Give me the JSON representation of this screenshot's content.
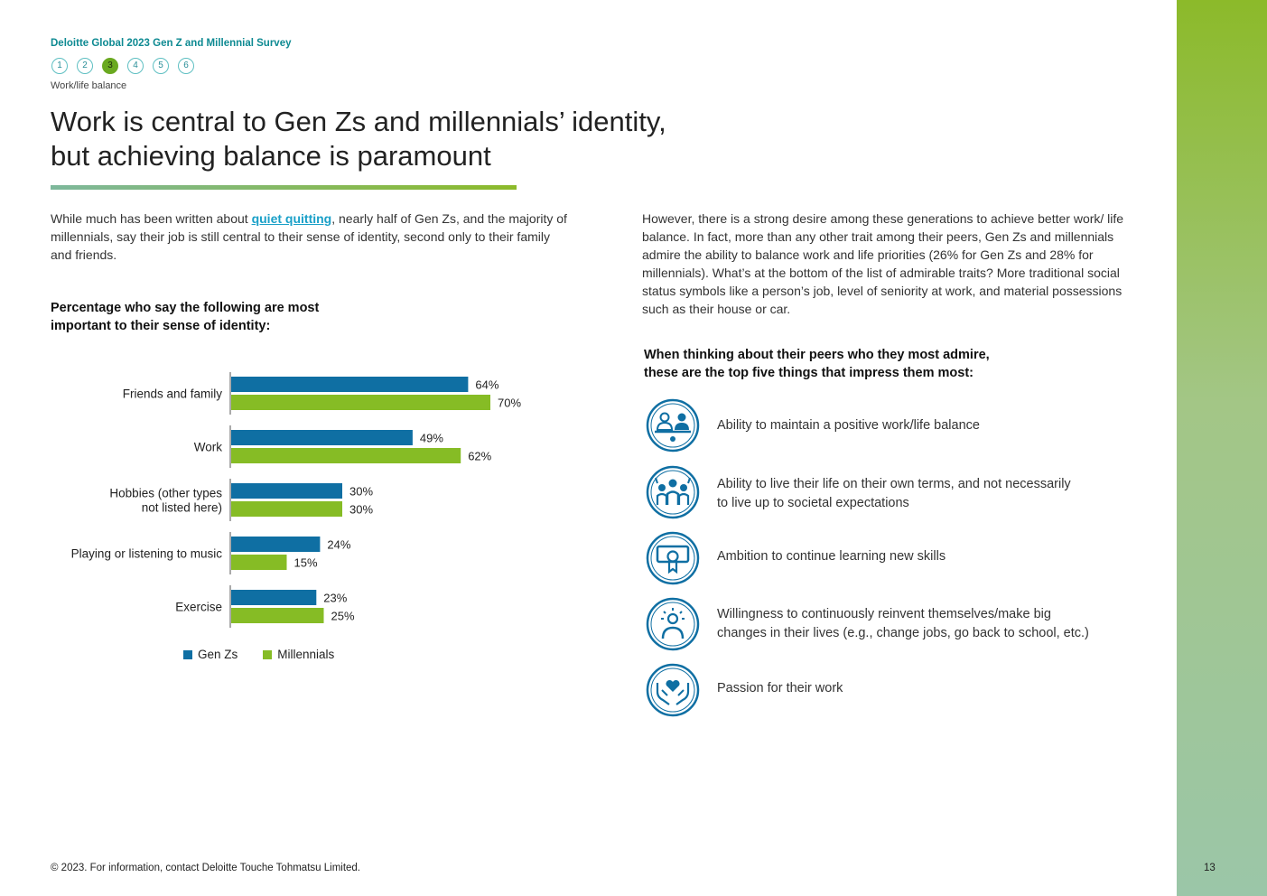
{
  "header": {
    "survey_title": "Deloitte Global 2023 Gen Z and Millennial Survey",
    "steps": [
      "1",
      "2",
      "3",
      "4",
      "5",
      "6"
    ],
    "active_step": 3,
    "section_label": "Work/life balance"
  },
  "headline": {
    "line1": "Work is central to Gen Zs and millennials’ identity,",
    "line2": "but achieving balance is paramount"
  },
  "intro": {
    "before_link": "While much has been written about ",
    "link_text": "quiet quitting",
    "after_link": ", nearly half of Gen Zs, and the majority of millennials, say their job is still central to their sense of identity, second only to their family and friends."
  },
  "right_paragraph": "However, there is a strong desire among these generations to achieve better work/ life balance. In fact, more than any other trait among their peers, Gen Zs and millennials admire the ability to balance work and life priorities (26% for Gen Zs and 28% for millennials). What’s at the bottom of the list of admirable traits? More traditional social status symbols like a person’s job, level of seniority at work, and material possessions such as their house or car.",
  "chart_data": {
    "type": "bar",
    "orientation": "horizontal",
    "title": "Percentage who say the following are most important to their sense of identity:",
    "categories": [
      [
        "Friends and family"
      ],
      [
        "Work"
      ],
      [
        "Hobbies (other types",
        "not listed here)"
      ],
      [
        "Playing or listening to music"
      ],
      [
        "Exercise"
      ]
    ],
    "series": [
      {
        "name": "Gen Zs",
        "color": "#0f6fa3",
        "values": [
          64,
          49,
          30,
          24,
          23
        ]
      },
      {
        "name": "Millennials",
        "color": "#86bc25",
        "values": [
          70,
          62,
          30,
          15,
          25
        ]
      }
    ],
    "value_suffix": "%",
    "xlim": [
      0,
      100
    ],
    "legend": "bottom-left"
  },
  "traits": {
    "title": "When thinking about their peers who they most admire, these are the top five things that impress them most:",
    "icon_color": "#0f6fa3",
    "items": [
      {
        "icon": "work-life-balance-icon",
        "lines": [
          "Ability to maintain a positive work/life balance"
        ]
      },
      {
        "icon": "people-group-icon",
        "lines": [
          "Ability to live their life on their own terms, and not necessarily",
          "to live up to societal expectations"
        ]
      },
      {
        "icon": "certificate-icon",
        "lines": [
          "Ambition to continue learning new skills"
        ]
      },
      {
        "icon": "idea-person-icon",
        "lines": [
          "Willingness to continuously reinvent themselves/make big",
          "changes in their lives (e.g., change jobs, go back to school, etc.)"
        ]
      },
      {
        "icon": "heart-hands-icon",
        "lines": [
          "Passion for their work"
        ]
      }
    ]
  },
  "footer": {
    "copyright": "© 2023. For information, contact Deloitte Touche Tohmatsu Limited.",
    "page_number": "13"
  }
}
